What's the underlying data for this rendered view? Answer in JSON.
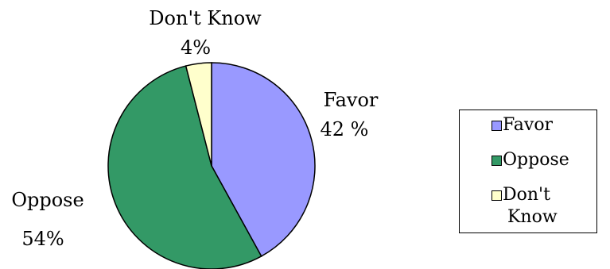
{
  "chart_data": {
    "type": "pie",
    "title": "",
    "slices": [
      {
        "label": "Favor",
        "value": 42,
        "value_label": "42 %",
        "color": "#9999ff"
      },
      {
        "label": "Oppose",
        "value": 54,
        "value_label": "54%",
        "color": "#339966"
      },
      {
        "label": "Don't Know",
        "value": 4,
        "value_label": "4%",
        "color": "#ffffcc"
      }
    ],
    "legend": {
      "position": "right",
      "entries": [
        "Favor",
        "Oppose",
        "Don't Know"
      ],
      "dont_know_lines": [
        "Don't",
        "Know"
      ]
    }
  }
}
